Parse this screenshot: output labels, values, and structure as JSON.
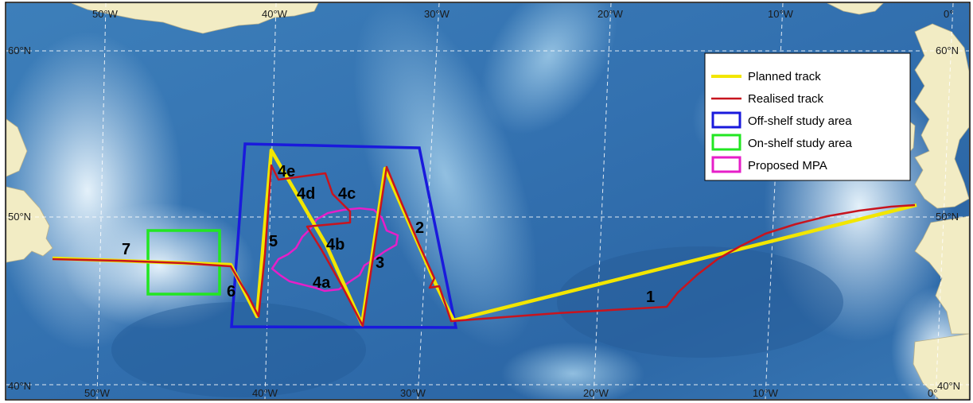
{
  "map": {
    "lon_labels_top": [
      "50°W",
      "40°W",
      "30°W",
      "20°W",
      "10°W",
      "0°"
    ],
    "lon_labels_bottom": [
      "50°W",
      "40°W",
      "30°W",
      "20°W",
      "10°W",
      "0°"
    ],
    "lat_labels_left": [
      "60°N",
      "50°N",
      "40°N"
    ],
    "lat_labels_right": [
      "60°N",
      "50°N",
      "40°N"
    ],
    "segment_labels": [
      "1",
      "2",
      "3",
      "4a",
      "4b",
      "4c",
      "4d",
      "4e",
      "5",
      "6",
      "7"
    ]
  },
  "legend": {
    "items": [
      {
        "label": "Planned track",
        "symbol": "line",
        "color": "#f2e600"
      },
      {
        "label": "Realised track",
        "symbol": "line",
        "color": "#c8141e"
      },
      {
        "label": "Off-shelf study area",
        "symbol": "box",
        "color": "#1a1adc"
      },
      {
        "label": "On-shelf study area",
        "symbol": "box",
        "color": "#22e622"
      },
      {
        "label": "Proposed MPA",
        "symbol": "box",
        "color": "#e61ec8"
      }
    ]
  },
  "colors": {
    "ocean_deep": "#2f6fae",
    "ocean_mid": "#4f8fc4",
    "ocean_shallow": "#b7d8ee",
    "land": "#f2ecc4",
    "grid": "#ffffff"
  }
}
